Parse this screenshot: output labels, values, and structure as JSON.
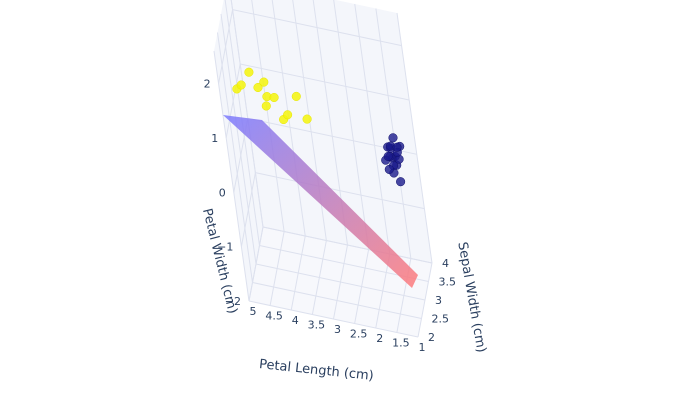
{
  "chart_data": {
    "type": "scatter",
    "title": "",
    "axes": {
      "x": {
        "label": "Petal Length (cm)",
        "ticks": [
          "5",
          "4.5",
          "4",
          "3.5",
          "3",
          "2.5",
          "2",
          "1.5",
          "1"
        ],
        "range": [
          1,
          5
        ]
      },
      "y": {
        "label": "Sepal Width (cm)",
        "ticks": [
          "2",
          "2.5",
          "3",
          "3.5",
          "4"
        ],
        "range": [
          2,
          4
        ]
      },
      "z": {
        "label": "Petal Width (cm)",
        "ticks": [
          "2",
          "1",
          "0",
          "−1",
          "−2"
        ],
        "range": [
          -2,
          2.6
        ]
      }
    },
    "plane": {
      "color_start": "#7b7bff",
      "color_end": "#ff7b7b",
      "opacity": 0.85
    },
    "series": [
      {
        "color": "#f5f50a",
        "points": [
          [
            4.6,
            2.1,
            1.9
          ],
          [
            4.6,
            2.5,
            1.7
          ],
          [
            4.2,
            2.5,
            1.72
          ],
          [
            4.1,
            2.7,
            1.7
          ],
          [
            4.0,
            2.3,
            1.55
          ],
          [
            4.0,
            2.45,
            1.62
          ],
          [
            3.7,
            2.55,
            1.18
          ],
          [
            3.6,
            2.6,
            1.25
          ],
          [
            3.4,
            2.85,
            1.45
          ],
          [
            3.2,
            2.8,
            1.1
          ],
          [
            4.4,
            2.6,
            1.9
          ],
          [
            3.9,
            2.7,
            1.45
          ]
        ]
      },
      {
        "color": "#1a1a8c",
        "points": [
          [
            1.45,
            3.5,
            0.2
          ],
          [
            1.4,
            3.55,
            0.2
          ],
          [
            1.5,
            3.45,
            0.25
          ],
          [
            1.35,
            3.4,
            0.15
          ],
          [
            1.5,
            3.6,
            0.3
          ],
          [
            1.4,
            3.3,
            0.2
          ],
          [
            1.3,
            3.5,
            0.2
          ],
          [
            1.55,
            3.55,
            0.35
          ],
          [
            1.45,
            3.75,
            0.4
          ],
          [
            1.3,
            3.7,
            0.3
          ],
          [
            1.4,
            3.25,
            0.1
          ],
          [
            1.6,
            3.4,
            0.2
          ],
          [
            1.5,
            3.25,
            0.15
          ],
          [
            1.35,
            3.6,
            0.25
          ],
          [
            1.45,
            3.45,
            0.45
          ],
          [
            1.25,
            3.2,
            0.0
          ],
          [
            1.6,
            3.65,
            0.1
          ],
          [
            1.4,
            3.8,
            0.2
          ]
        ]
      }
    ]
  }
}
